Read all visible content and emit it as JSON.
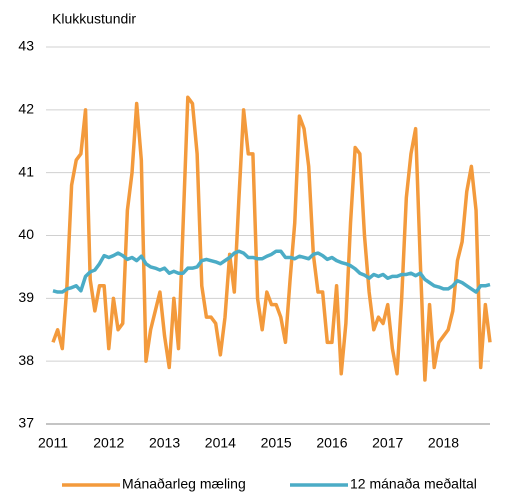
{
  "chart_data": {
    "type": "line",
    "y_label": "Klukkustundir",
    "categories": [
      "2011",
      null,
      null,
      null,
      null,
      null,
      null,
      null,
      null,
      null,
      null,
      null,
      "2012",
      null,
      null,
      null,
      null,
      null,
      null,
      null,
      null,
      null,
      null,
      null,
      "2013",
      null,
      null,
      null,
      null,
      null,
      null,
      null,
      null,
      null,
      null,
      null,
      "2014",
      null,
      null,
      null,
      null,
      null,
      null,
      null,
      null,
      null,
      null,
      null,
      "2015",
      null,
      null,
      null,
      null,
      null,
      null,
      null,
      null,
      null,
      null,
      null,
      "2016",
      null,
      null,
      null,
      null,
      null,
      null,
      null,
      null,
      null,
      null,
      null,
      "2017",
      null,
      null,
      null,
      null,
      null,
      null,
      null,
      null,
      null,
      null,
      null,
      "2018",
      null,
      null,
      null,
      null,
      null,
      null,
      null,
      null,
      null,
      null
    ],
    "ylim": [
      37,
      43
    ],
    "yticks": [
      37,
      38,
      39,
      40,
      41,
      42,
      43
    ],
    "grid": true,
    "legend": "bottom",
    "series": [
      {
        "name": "Mánaðarleg mæling",
        "color": "#f39a3c",
        "values": [
          38.3,
          38.5,
          38.2,
          39.2,
          40.8,
          41.2,
          41.3,
          42.0,
          39.3,
          38.8,
          39.2,
          39.2,
          38.2,
          39.0,
          38.5,
          38.6,
          40.4,
          41.0,
          42.1,
          41.2,
          38.0,
          38.5,
          38.8,
          39.1,
          38.4,
          37.9,
          39.0,
          38.2,
          40.2,
          42.2,
          42.1,
          41.3,
          39.2,
          38.7,
          38.7,
          38.6,
          38.1,
          38.7,
          39.7,
          39.1,
          40.6,
          42.0,
          41.3,
          41.3,
          39.0,
          38.5,
          39.1,
          38.9,
          38.9,
          38.7,
          38.3,
          39.3,
          40.2,
          41.9,
          41.7,
          41.1,
          39.7,
          39.1,
          39.1,
          38.3,
          38.3,
          39.2,
          37.8,
          38.6,
          40.2,
          41.4,
          41.3,
          40.0,
          39.1,
          38.5,
          38.7,
          38.6,
          38.9,
          38.2,
          37.8,
          39.0,
          40.6,
          41.3,
          41.7,
          39.6,
          37.7,
          38.9,
          37.9,
          38.3,
          38.4,
          38.5,
          38.8,
          39.6,
          39.9,
          40.7,
          41.1,
          40.4,
          37.9,
          38.9,
          38.3
        ]
      },
      {
        "name": "12 mánaða meðaltal",
        "color": "#4bacc6",
        "values": [
          39.12,
          39.1,
          39.1,
          39.15,
          39.17,
          39.2,
          39.12,
          39.35,
          39.42,
          39.45,
          39.55,
          39.68,
          39.65,
          39.68,
          39.72,
          39.68,
          39.62,
          39.65,
          39.6,
          39.67,
          39.55,
          39.5,
          39.48,
          39.45,
          39.48,
          39.4,
          39.43,
          39.4,
          39.4,
          39.48,
          39.48,
          39.5,
          39.6,
          39.62,
          39.6,
          39.58,
          39.55,
          39.6,
          39.65,
          39.72,
          39.75,
          39.72,
          39.65,
          39.65,
          39.63,
          39.63,
          39.67,
          39.7,
          39.75,
          39.75,
          39.65,
          39.65,
          39.63,
          39.67,
          39.65,
          39.63,
          39.7,
          39.72,
          39.68,
          39.62,
          39.65,
          39.6,
          39.57,
          39.55,
          39.52,
          39.47,
          39.4,
          39.37,
          39.32,
          39.38,
          39.35,
          39.38,
          39.32,
          39.35,
          39.35,
          39.38,
          39.38,
          39.4,
          39.36,
          39.4,
          39.3,
          39.25,
          39.2,
          39.18,
          39.15,
          39.15,
          39.2,
          39.28,
          39.25,
          39.2,
          39.15,
          39.1,
          39.2,
          39.2,
          39.22
        ]
      }
    ]
  }
}
